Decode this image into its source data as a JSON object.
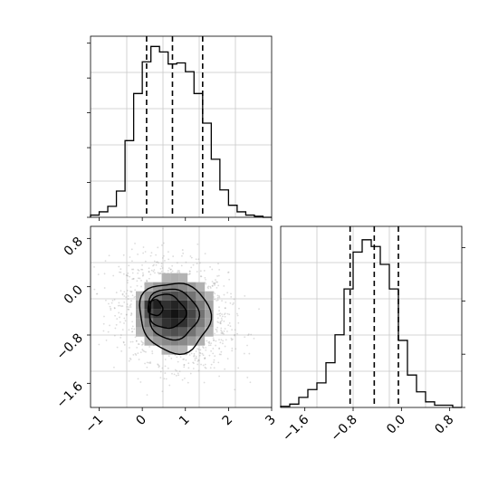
{
  "chart_data": [
    {
      "type": "histogram",
      "variable": "x",
      "grid": true,
      "xlim": [
        -1.2,
        3.0
      ],
      "bin_edges": [
        -1.2,
        -1.0,
        -0.8,
        -0.6,
        -0.4,
        -0.2,
        0.0,
        0.2,
        0.4,
        0.6,
        0.8,
        1.0,
        1.2,
        1.4,
        1.6,
        1.8,
        2.0,
        2.2,
        2.4,
        2.6,
        2.8,
        3.0
      ],
      "counts": [
        2,
        5,
        10,
        24,
        70,
        113,
        142,
        156,
        151,
        140,
        141,
        133,
        113,
        86,
        53,
        25,
        11,
        5,
        2,
        1,
        0
      ],
      "quantile_lines": [
        0.1,
        0.7,
        1.4
      ]
    },
    {
      "type": "histogram",
      "variable": "y",
      "grid": true,
      "xlim": [
        -2.0,
        1.0
      ],
      "bin_edges": [
        -2.0,
        -1.85,
        -1.7,
        -1.55,
        -1.4,
        -1.25,
        -1.1,
        -0.95,
        -0.8,
        -0.65,
        -0.5,
        -0.35,
        -0.2,
        -0.05,
        0.1,
        0.25,
        0.4,
        0.55,
        0.7,
        0.85,
        1.0
      ],
      "counts": [
        1,
        3,
        9,
        16,
        22,
        40,
        65,
        106,
        139,
        150,
        144,
        128,
        106,
        60,
        29,
        14,
        5,
        2,
        2,
        0
      ],
      "quantile_lines": [
        -0.85,
        -0.45,
        -0.05
      ],
      "xtick_labels": [
        "−1.6",
        "−0.8",
        "0.0",
        "0.8"
      ],
      "xtick_values": [
        -1.6,
        -0.8,
        0.0,
        0.8
      ]
    },
    {
      "type": "heatmap",
      "x_variable": "x",
      "y_variable": "y",
      "grid": true,
      "xlim": [
        -1.2,
        3.0
      ],
      "ylim": [
        -2.0,
        1.0
      ],
      "xtick_labels": [
        "−1",
        "0",
        "1",
        "2",
        "3"
      ],
      "xtick_values": [
        -1,
        0,
        1,
        2,
        3
      ],
      "ytick_labels": [
        "−1.6",
        "−0.8",
        "0.0",
        "0.8"
      ],
      "ytick_values": [
        -1.6,
        -0.8,
        0.0,
        0.8
      ],
      "density_center": [
        0.75,
        -0.45
      ],
      "density_peak": [
        0.3,
        -0.35
      ],
      "contour_levels": 4
    }
  ],
  "colors": {
    "line": "#000000",
    "grid": "#c8c8c8",
    "points": "#9a9a9a"
  }
}
